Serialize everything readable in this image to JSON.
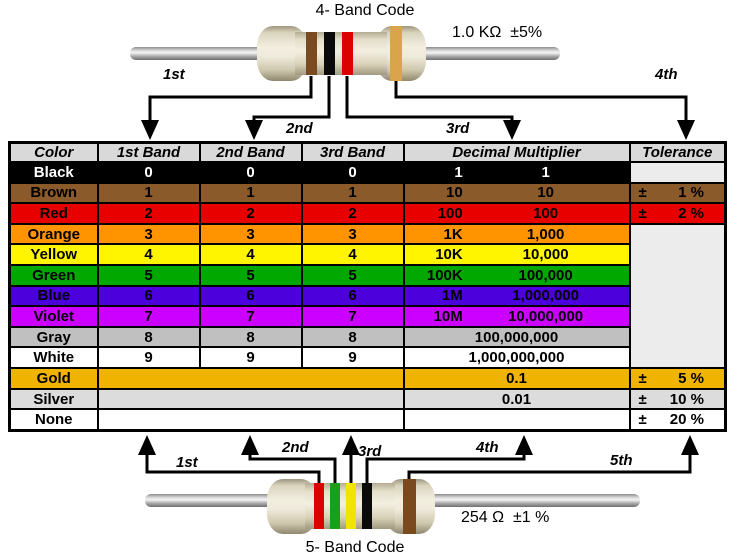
{
  "top": {
    "title": "4- Band Code",
    "value_label": "1.0 KΩ  ±5%",
    "arrows": [
      "1st",
      "2nd",
      "3rd",
      "4th"
    ],
    "bands": [
      {
        "name": "brown",
        "hex": "#7A4A21"
      },
      {
        "name": "black",
        "hex": "#0A0A0A"
      },
      {
        "name": "red",
        "hex": "#DD0000"
      },
      {
        "name": "gold",
        "hex": "#D9A44C"
      }
    ]
  },
  "bottom": {
    "title": "5- Band Code",
    "value_label": "254 Ω  ±1 %",
    "arrows": [
      "1st",
      "2nd",
      "3rd",
      "4th",
      "5th"
    ],
    "bands": [
      {
        "name": "red",
        "hex": "#DD0000"
      },
      {
        "name": "green",
        "hex": "#18A018"
      },
      {
        "name": "yellow",
        "hex": "#F0E400"
      },
      {
        "name": "black",
        "hex": "#0A0A0A"
      },
      {
        "name": "brown",
        "hex": "#7A4A1E"
      }
    ]
  },
  "table": {
    "pm": "±",
    "headers": [
      "Color",
      "1st Band",
      "2nd Band",
      "3rd Band",
      "Decimal Multiplier",
      "Tolerance"
    ],
    "rows": [
      {
        "name": "Black",
        "bg": "#000000",
        "fg": "#FFFFFF",
        "b1": "0",
        "b2": "0",
        "b3": "0",
        "mult_abbr": "1",
        "mult_value": "1",
        "tol": "",
        "tol_bg": "#ECECEC"
      },
      {
        "name": "Brown",
        "bg": "#8B5A2B",
        "fg": "#000000",
        "b1": "1",
        "b2": "1",
        "b3": "1",
        "mult_abbr": "10",
        "mult_value": "10",
        "tol": "1 %",
        "tol_bg": "#8B5A2B"
      },
      {
        "name": "Red",
        "bg": "#E80000",
        "fg": "#000000",
        "b1": "2",
        "b2": "2",
        "b3": "2",
        "mult_abbr": "100",
        "mult_value": "100",
        "tol": "2 %",
        "tol_bg": "#E80000"
      },
      {
        "name": "Orange",
        "bg": "#FF9400",
        "fg": "#000000",
        "b1": "3",
        "b2": "3",
        "b3": "3",
        "mult_abbr": "1K",
        "mult_value": "1,000",
        "tol": "",
        "tol_span": 7,
        "tol_bg": "#ECECEC"
      },
      {
        "name": "Yellow",
        "bg": "#FFF500",
        "fg": "#000000",
        "b1": "4",
        "b2": "4",
        "b3": "4",
        "mult_abbr": "10K",
        "mult_value": "10,000"
      },
      {
        "name": "Green",
        "bg": "#00A800",
        "fg": "#000000",
        "b1": "5",
        "b2": "5",
        "b3": "5",
        "mult_abbr": "100K",
        "mult_value": "100,000"
      },
      {
        "name": "Blue",
        "bg": "#4B00DC",
        "fg": "#000000",
        "b1": "6",
        "b2": "6",
        "b3": "6",
        "mult_abbr": "1M",
        "mult_value": "1,000,000"
      },
      {
        "name": "Violet",
        "bg": "#CC00FF",
        "fg": "#000000",
        "b1": "7",
        "b2": "7",
        "b3": "7",
        "mult_abbr": "10M",
        "mult_value": "10,000,000"
      },
      {
        "name": "Gray",
        "bg": "#C0C0C0",
        "fg": "#000000",
        "b1": "8",
        "b2": "8",
        "b3": "8",
        "mult_abbr": "",
        "mult_value": "100,000,000"
      },
      {
        "name": "White",
        "bg": "#FFFFFF",
        "fg": "#000000",
        "b1": "9",
        "b2": "9",
        "b3": "9",
        "mult_abbr": "",
        "mult_value": "1,000,000,000"
      },
      {
        "name": "Gold",
        "bg": "#F0B400",
        "fg": "#000000",
        "bands_merged": true,
        "mult_abbr": "",
        "mult_value": "0.1",
        "tol": "5 %",
        "tol_bg": "#F0B400"
      },
      {
        "name": "Silver",
        "bg": "#DCDCDC",
        "fg": "#000000",
        "bands_merged": true,
        "mult_abbr": "",
        "mult_value": "0.01",
        "tol": "10 %",
        "tol_bg": "#DCDCDC"
      },
      {
        "name": "None",
        "bg": "#FFFFFF",
        "fg": "#000000",
        "bands_merged": true,
        "mult_abbr": "",
        "mult_value": "",
        "tol": "20 %",
        "tol_bg": "#FFFFFF"
      }
    ]
  }
}
